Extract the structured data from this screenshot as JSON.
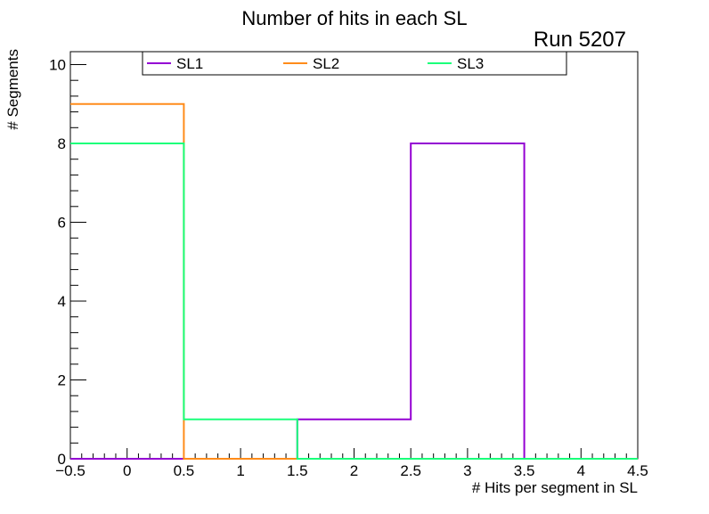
{
  "chart_data": {
    "type": "histogram",
    "title": "Number of hits in each SL",
    "annotation": "Run 5207",
    "xlabel": "# Hits per segment in SL",
    "ylabel": "# Segments",
    "xlim": [
      -0.5,
      4.5
    ],
    "ylim": [
      0,
      10.3
    ],
    "xticks": [
      -0.5,
      0,
      0.5,
      1,
      1.5,
      2,
      2.5,
      3,
      3.5,
      4,
      4.5
    ],
    "xtick_labels": [
      "−0.5",
      "0",
      "0.5",
      "1",
      "1.5",
      "2",
      "2.5",
      "3",
      "3.5",
      "4",
      "4.5"
    ],
    "yticks": [
      0,
      2,
      4,
      6,
      8,
      10
    ],
    "ytick_labels": [
      "0",
      "2",
      "4",
      "6",
      "8",
      "10"
    ],
    "bin_edges": [
      -0.5,
      0.5,
      1.5,
      2.5,
      3.5,
      4.5
    ],
    "legend": "top",
    "grid": false,
    "series": [
      {
        "name": "SL1",
        "color": "#9400d3",
        "values": [
          0,
          0,
          1,
          8,
          0
        ]
      },
      {
        "name": "SL2",
        "color": "#ff8c1a",
        "values": [
          9,
          0,
          0,
          0,
          0
        ]
      },
      {
        "name": "SL3",
        "color": "#1aff7a",
        "values": [
          8,
          1,
          0,
          0,
          0
        ]
      }
    ]
  }
}
